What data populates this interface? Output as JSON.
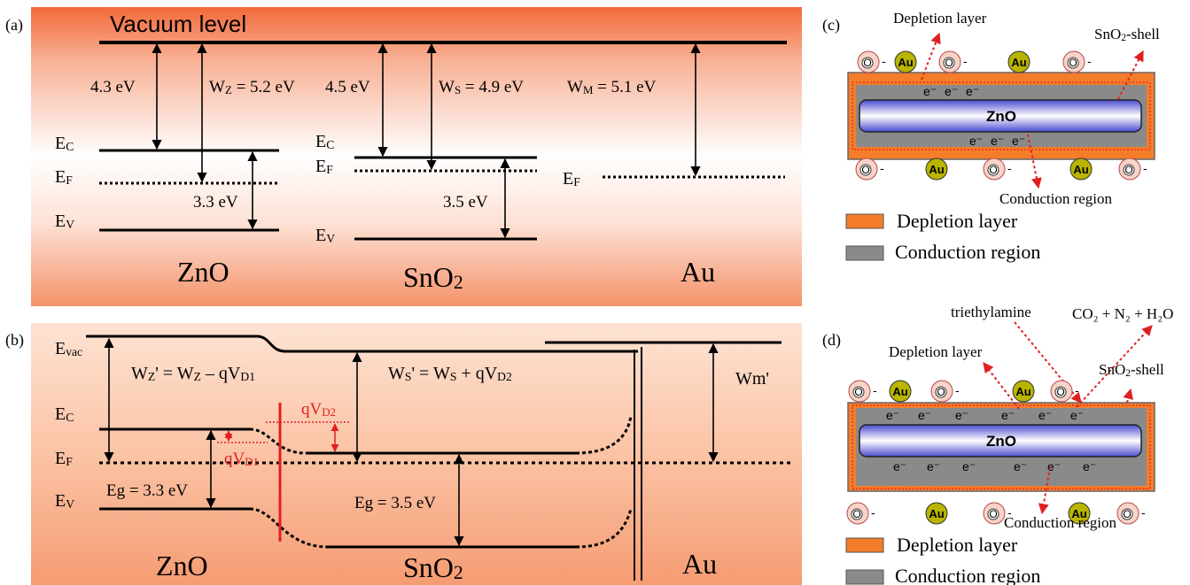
{
  "panel_a": {
    "label": "(a)",
    "vacuum_level": "Vacuum level",
    "zno": {
      "name": "ZnO",
      "ec": [
        "E",
        "C"
      ],
      "ef": [
        "E",
        "F"
      ],
      "ev": [
        "E",
        "V"
      ],
      "electron_affinity": "4.3 eV",
      "work_function": [
        "W",
        "Z",
        " = 5.2 eV"
      ],
      "band_gap": "3.3 eV"
    },
    "sno2": {
      "name": [
        "SnO",
        "2"
      ],
      "ec": [
        "E",
        "C"
      ],
      "ef": [
        "E",
        "F"
      ],
      "ev": [
        "E",
        "V"
      ],
      "electron_affinity": "4.5 eV",
      "work_function": [
        "W",
        "S",
        " = 4.9 eV"
      ],
      "band_gap": "3.5 eV"
    },
    "au": {
      "name": "Au",
      "ef": [
        "E",
        "F"
      ],
      "work_function": [
        "W",
        "M",
        " = 5.1 eV"
      ]
    }
  },
  "panel_b": {
    "label": "(b)",
    "evac": [
      "E",
      "vac"
    ],
    "ec": [
      "E",
      "C"
    ],
    "ef": [
      "E",
      "F"
    ],
    "ev": [
      "E",
      "V"
    ],
    "zno_work_function": [
      "W",
      "Z",
      "' = W",
      "Z",
      " – qV",
      "D1"
    ],
    "sno2_work_function": [
      "W",
      "S",
      "' = W",
      "S",
      " + qV",
      "D2"
    ],
    "au_work_function": "Wm'",
    "qvd1": [
      "qV",
      "D1"
    ],
    "qvd2": [
      "qV",
      "D2"
    ],
    "zno_gap": "Eg = 3.3 eV",
    "sno2_gap": "Eg = 3.5 eV",
    "zno": "ZnO",
    "sno2": [
      "SnO",
      "2"
    ],
    "au": "Au"
  },
  "panel_c": {
    "label": "(c)",
    "depletion_label": "Depletion layer",
    "shell_label": [
      "SnO",
      "2",
      "-shell"
    ],
    "core": "ZnO",
    "top_particles": [
      {
        "symbol": "O",
        "charge": "-"
      },
      {
        "symbol": "Au"
      },
      {
        "symbol": "O",
        "charge": "-"
      },
      {
        "symbol": "Au"
      },
      {
        "symbol": "O",
        "charge": "-"
      }
    ],
    "bottom_particles": [
      {
        "symbol": "O",
        "charge": "-"
      },
      {
        "symbol": "Au"
      },
      {
        "symbol": "O",
        "charge": "-"
      },
      {
        "symbol": "Au"
      },
      {
        "symbol": "O",
        "charge": "-"
      }
    ],
    "top_electrons": [
      "e⁻",
      "e⁻",
      "e⁻"
    ],
    "bottom_electrons": [
      "e⁻",
      "e⁻",
      "e⁻"
    ],
    "conduction_label": "Conduction region",
    "legend": [
      "Depletion layer",
      "Conduction region"
    ]
  },
  "panel_d": {
    "label": "(d)",
    "gas": "triethylamine",
    "products": "CO₂ + N₂ + H₂O",
    "depletion_label": "Depletion layer",
    "shell_label": [
      "SnO",
      "2",
      "-shell"
    ],
    "core": "ZnO",
    "top_particles": [
      {
        "symbol": "O",
        "charge": "-"
      },
      {
        "symbol": "Au"
      },
      {
        "symbol": "O",
        "charge": "-"
      },
      {
        "symbol": "Au"
      },
      {
        "symbol": "O",
        "charge": "-"
      }
    ],
    "bottom_particles": [
      {
        "symbol": "O",
        "charge": "-"
      },
      {
        "symbol": "Au"
      },
      {
        "symbol": "O",
        "charge": "-"
      },
      {
        "symbol": "Au"
      },
      {
        "symbol": "O",
        "charge": "-"
      }
    ],
    "top_electrons": [
      "e⁻",
      "e⁻",
      "e⁻",
      "e⁻",
      "e⁻",
      "e⁻"
    ],
    "bottom_electrons": [
      "e⁻",
      "e⁻",
      "e⁻",
      "e⁻",
      "e⁻",
      "e⁻"
    ],
    "conduction_label": "Conduction region",
    "legend": [
      "Depletion layer",
      "Conduction region"
    ]
  }
}
